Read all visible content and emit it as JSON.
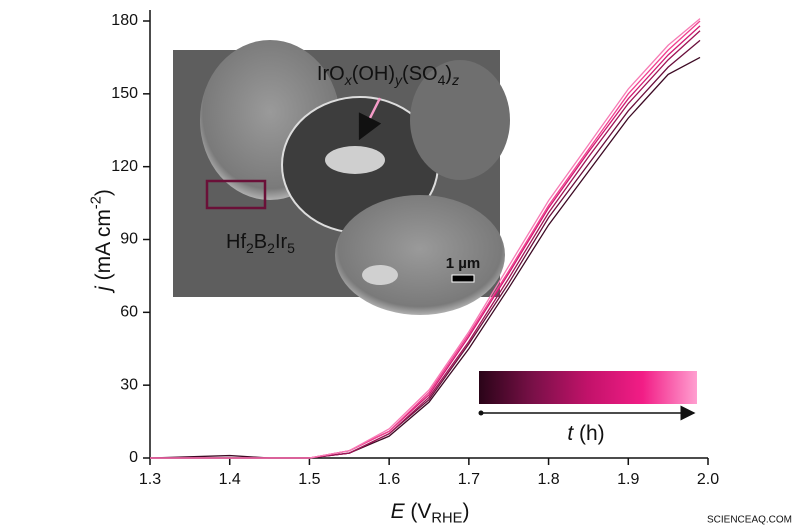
{
  "chart_data": {
    "type": "line",
    "x_label": {
      "parts": [
        {
          "t": "E",
          "italic": true
        },
        {
          "t": " (V"
        },
        {
          "t": "RHE",
          "sub": true
        },
        {
          "t": ")"
        }
      ]
    },
    "y_label": {
      "parts": [
        {
          "t": "j",
          "italic": true
        },
        {
          "t": " (mA cm"
        },
        {
          "t": "-2",
          "sup": true
        },
        {
          "t": ")"
        }
      ]
    },
    "x": [
      1.3,
      1.4,
      1.45,
      1.5,
      1.55,
      1.6,
      1.65,
      1.7,
      1.75,
      1.8,
      1.85,
      1.9,
      1.95,
      1.99
    ],
    "series": [
      {
        "color": "#3d0a24",
        "values": [
          0,
          1,
          0,
          0,
          2,
          9,
          23,
          45,
          70,
          96,
          118,
          140,
          158,
          165
        ]
      },
      {
        "color": "#6a0f3c",
        "values": [
          0,
          0,
          0,
          0,
          2,
          10,
          24,
          47,
          72,
          99,
          121,
          143,
          161,
          172
        ]
      },
      {
        "color": "#a01456",
        "values": [
          0,
          0,
          0,
          0,
          2,
          10,
          25,
          48,
          74,
          101,
          124,
          146,
          164,
          176
        ]
      },
      {
        "color": "#d01a72",
        "values": [
          0,
          0,
          0,
          0,
          3,
          11,
          26,
          50,
          76,
          103,
          126,
          148,
          166,
          178
        ]
      },
      {
        "color": "#f0408f",
        "values": [
          0,
          0,
          0,
          0,
          3,
          11,
          27,
          51,
          77,
          104,
          127,
          150,
          168,
          180
        ]
      },
      {
        "color": "#f77bb5",
        "values": [
          0,
          0,
          0,
          0,
          3,
          12,
          28,
          52,
          79,
          106,
          129,
          152,
          170,
          181
        ]
      }
    ],
    "xlim": [
      1.3,
      2.0
    ],
    "xticks": [
      1.3,
      1.4,
      1.5,
      1.6,
      1.7,
      1.8,
      1.9,
      {
        "value": 2.0,
        "label": "2.0"
      }
    ],
    "ylim": [
      0,
      180
    ],
    "yticks": [
      0,
      30,
      60,
      90,
      120,
      150,
      180
    ],
    "inset": {
      "product_label": {
        "parts": [
          {
            "t": "IrO"
          },
          {
            "t": "x",
            "sub": true,
            "italic": true
          },
          {
            "t": "(OH)"
          },
          {
            "t": "y",
            "sub": true,
            "italic": true
          },
          {
            "t": "(SO"
          },
          {
            "t": "4",
            "sub": true
          },
          {
            "t": ")"
          },
          {
            "t": "z",
            "sub": true,
            "italic": true
          }
        ]
      },
      "phase_label": {
        "parts": [
          {
            "t": "Hf"
          },
          {
            "t": "2",
            "sub": true
          },
          {
            "t": "B"
          },
          {
            "t": "2",
            "sub": true
          },
          {
            "t": "Ir"
          },
          {
            "t": "5",
            "sub": true
          }
        ]
      },
      "scale_bar": "1 µm"
    },
    "time_bar": {
      "parts": [
        {
          "t": "t",
          "italic": true
        },
        {
          "t": " (h)"
        }
      ],
      "colors": [
        "#2a0418",
        "#7a1048",
        "#c2126a",
        "#f21d86",
        "#ff9fd0"
      ]
    },
    "watermark": "SCIENCEAQ.COM"
  }
}
